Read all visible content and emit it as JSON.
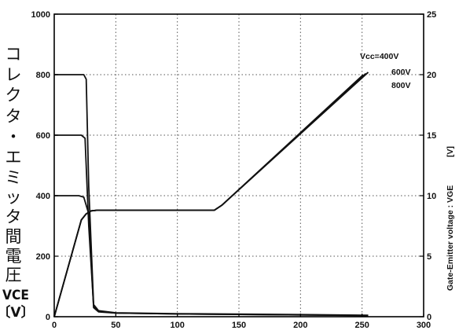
{
  "chart_data": {
    "type": "line",
    "x_axis": {
      "range": [
        0,
        300
      ],
      "ticks": [
        "0",
        "50",
        "100",
        "150",
        "200",
        "250",
        "300"
      ]
    },
    "y_left": {
      "range": [
        0,
        1000
      ],
      "ticks": [
        "0",
        "200",
        "400",
        "600",
        "800",
        "1000"
      ],
      "label_chars": [
        "コ",
        "レ",
        "ク",
        "タ",
        "・",
        "エ",
        "ミ",
        "ッ",
        "タ",
        "間",
        "電",
        "圧"
      ],
      "label_symbol": "VCE",
      "label_unit": "〔V〕"
    },
    "y_right": {
      "range": [
        0,
        25
      ],
      "ticks": [
        "0",
        "5",
        "10",
        "15",
        "20",
        "25"
      ],
      "label": "Gate-Emitter voltage : VGE",
      "label_unit": "[V]"
    },
    "grid": "dotted",
    "annotations": [
      "Vcc=400V",
      "600V",
      "800V"
    ],
    "series": [
      {
        "axis": "left",
        "color": "#111111",
        "x": [
          0,
          20,
          24,
          28,
          32,
          36,
          50,
          100,
          200,
          255
        ],
        "y": [
          400,
          400,
          395,
          340,
          30,
          16,
          12,
          9,
          6,
          4
        ]
      },
      {
        "axis": "left",
        "color": "#111111",
        "x": [
          0,
          22,
          25,
          28,
          32,
          36,
          50,
          100,
          200,
          255
        ],
        "y": [
          600,
          600,
          590,
          300,
          35,
          18,
          12,
          9,
          6,
          4
        ]
      },
      {
        "axis": "left",
        "color": "#111111",
        "x": [
          0,
          24,
          26,
          28,
          32,
          36,
          50,
          100,
          200,
          255
        ],
        "y": [
          800,
          800,
          785,
          430,
          40,
          20,
          13,
          10,
          7,
          5
        ]
      },
      {
        "axis": "right",
        "color": "#111111",
        "x": [
          0,
          22,
          26,
          30,
          35,
          130,
          136,
          255
        ],
        "y": [
          0,
          8.0,
          8.5,
          8.75,
          8.8,
          8.8,
          9.2,
          20.2
        ]
      },
      {
        "axis": "right",
        "color": "#111111",
        "x": [
          0,
          22,
          26,
          30,
          35,
          130,
          136,
          253
        ],
        "y": [
          0,
          8.0,
          8.5,
          8.75,
          8.8,
          8.8,
          9.2,
          20.1
        ]
      },
      {
        "axis": "right",
        "color": "#111111",
        "x": [
          0,
          22,
          26,
          30,
          35,
          130,
          136,
          251
        ],
        "y": [
          0,
          8.0,
          8.5,
          8.75,
          8.8,
          8.8,
          9.2,
          20.0
        ]
      }
    ]
  }
}
